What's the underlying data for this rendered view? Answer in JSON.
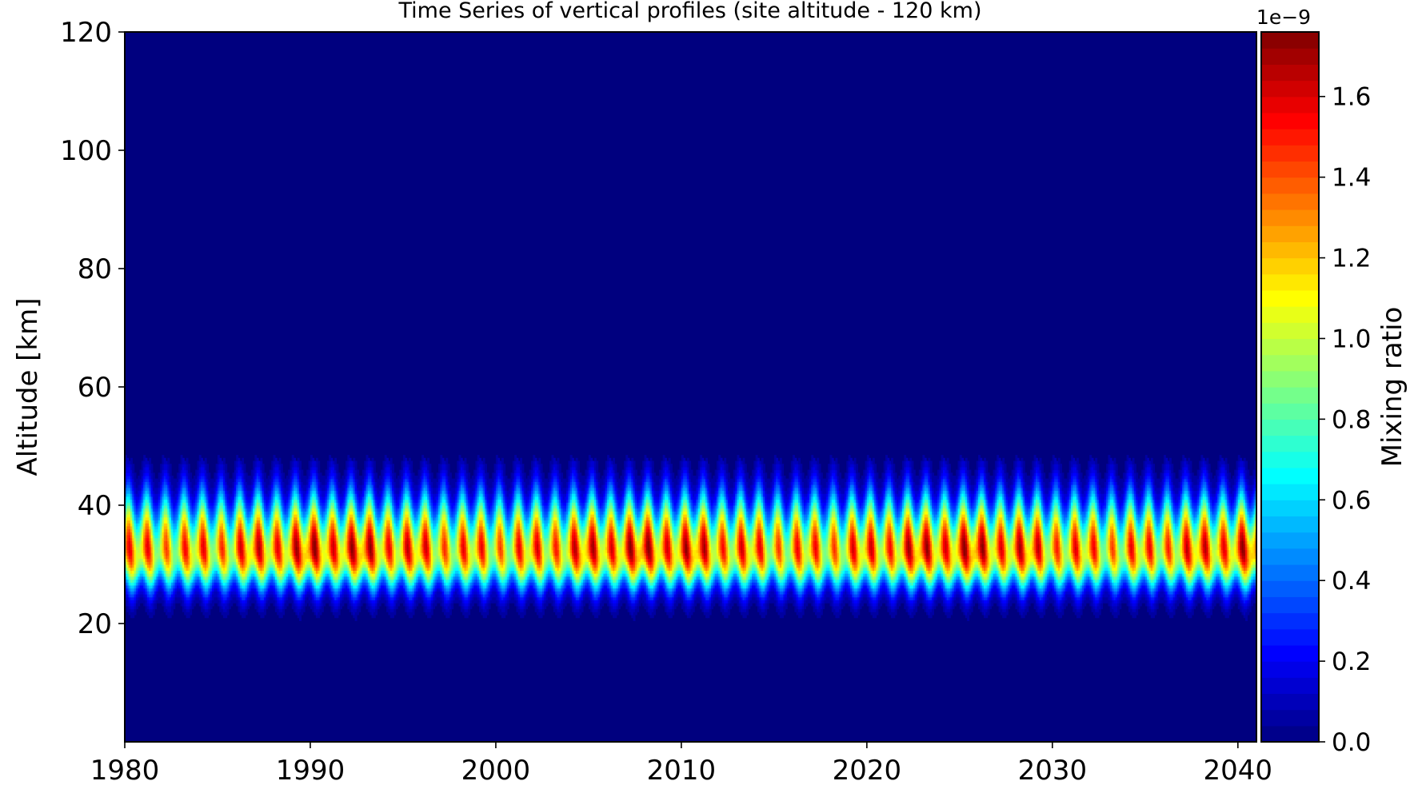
{
  "chart_data": {
    "type": "heatmap",
    "title": "Time Series of vertical profiles (site altitude - 120 km)",
    "xlabel": "",
    "ylabel": "Altitude [km]",
    "xlim": [
      1980,
      2041
    ],
    "ylim": [
      0,
      120
    ],
    "xticks": [
      1980,
      1990,
      2000,
      2010,
      2020,
      2030,
      2040
    ],
    "yticks": [
      20,
      40,
      60,
      80,
      100,
      120
    ],
    "colormap": "jet",
    "colorbar": {
      "label": "Mixing ratio",
      "offset_label": "1e−9",
      "range": [
        0.0,
        1.76
      ],
      "ticks": [
        0.0,
        0.2,
        0.4,
        0.6,
        0.8,
        1.0,
        1.2,
        1.4,
        1.6
      ],
      "levels": 44
    },
    "profile": {
      "layer_bottom_km": 20,
      "layer_top_km": 48,
      "peak_altitude_km": 32,
      "peak_value": 1.62,
      "background_value": 0.0,
      "seasonal_period_years": 1
    }
  }
}
